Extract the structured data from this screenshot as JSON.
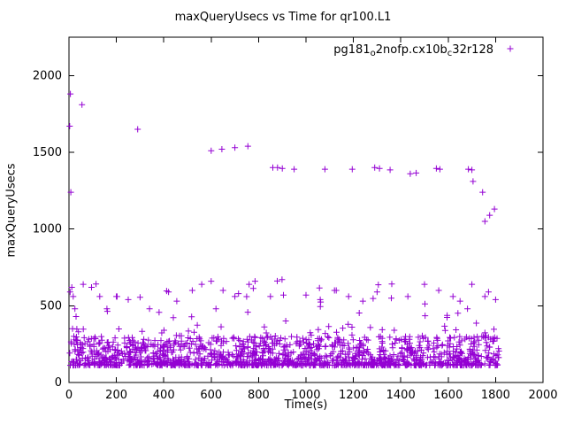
{
  "chart_data": {
    "type": "scatter",
    "title": "maxQueryUsecs vs Time for qr100.L1",
    "xlabel": "Time(s)",
    "ylabel": "maxQueryUsecs",
    "xlim": [
      0,
      2000
    ],
    "ylim": [
      0,
      2250
    ],
    "xticks": [
      0,
      200,
      400,
      600,
      800,
      1000,
      1200,
      1400,
      1600,
      1800,
      2000
    ],
    "yticks": [
      0,
      500,
      1000,
      1500,
      2000
    ],
    "grid": false,
    "legend_position": "top-right-inside",
    "marker": "plus",
    "color": "#9400d3",
    "series": [
      {
        "name": "pg181_o2nofp.cx10b_c32r128"
      }
    ],
    "legend_segments": [
      {
        "text": "pg181",
        "sub": false
      },
      {
        "text": "o",
        "sub": true
      },
      {
        "text": "2nofp.cx10b",
        "sub": false
      },
      {
        "text": "c",
        "sub": true
      },
      {
        "text": "32r128",
        "sub": false
      }
    ],
    "outliers": [
      [
        3,
        1670
      ],
      [
        6,
        1880
      ],
      [
        8,
        1240
      ],
      [
        55,
        1810
      ],
      [
        290,
        1650
      ],
      [
        600,
        1510
      ],
      [
        645,
        1520
      ],
      [
        700,
        1530
      ],
      [
        755,
        1540
      ],
      [
        860,
        1400
      ],
      [
        880,
        1400
      ],
      [
        900,
        1395
      ],
      [
        950,
        1390
      ],
      [
        1080,
        1390
      ],
      [
        1195,
        1390
      ],
      [
        1290,
        1400
      ],
      [
        1310,
        1395
      ],
      [
        1355,
        1385
      ],
      [
        1440,
        1360
      ],
      [
        1465,
        1365
      ],
      [
        1550,
        1395
      ],
      [
        1565,
        1390
      ],
      [
        1685,
        1390
      ],
      [
        1700,
        1385
      ],
      [
        1705,
        1310
      ],
      [
        1745,
        1240
      ],
      [
        1755,
        1050
      ],
      [
        1775,
        1090
      ],
      [
        1795,
        1130
      ],
      [
        5,
        590
      ],
      [
        12,
        620
      ],
      [
        18,
        560
      ],
      [
        25,
        480
      ],
      [
        30,
        430
      ],
      [
        15,
        350
      ],
      [
        40,
        330
      ],
      [
        60,
        640
      ],
      [
        95,
        620
      ],
      [
        130,
        560
      ],
      [
        160,
        480
      ],
      [
        200,
        560
      ],
      [
        250,
        540
      ],
      [
        300,
        555
      ],
      [
        340,
        480
      ],
      [
        420,
        590
      ],
      [
        455,
        530
      ],
      [
        520,
        600
      ],
      [
        560,
        640
      ],
      [
        600,
        660
      ],
      [
        620,
        480
      ],
      [
        650,
        600
      ],
      [
        700,
        560
      ],
      [
        760,
        640
      ],
      [
        785,
        660
      ],
      [
        850,
        560
      ],
      [
        905,
        570
      ],
      [
        1000,
        570
      ],
      [
        1060,
        540
      ],
      [
        1120,
        600
      ],
      [
        1180,
        560
      ],
      [
        1240,
        530
      ],
      [
        1300,
        590
      ],
      [
        1360,
        550
      ],
      [
        1430,
        560
      ],
      [
        1500,
        640
      ],
      [
        1560,
        600
      ],
      [
        1620,
        560
      ],
      [
        1650,
        530
      ],
      [
        1700,
        640
      ],
      [
        1755,
        560
      ],
      [
        1770,
        590
      ],
      [
        1800,
        540
      ]
    ],
    "bands": [
      {
        "count": 1400,
        "x": [
          2,
          1815
        ],
        "y": [
          112,
          300
        ],
        "pow": 2.4
      },
      {
        "count": 110,
        "x": [
          2,
          1815
        ],
        "y": [
          230,
          470
        ],
        "pow": 1.6
      },
      {
        "count": 18,
        "x": [
          10,
          1800
        ],
        "y": [
          430,
          680
        ],
        "pow": 1.0
      }
    ],
    "seed": 20240613
  }
}
